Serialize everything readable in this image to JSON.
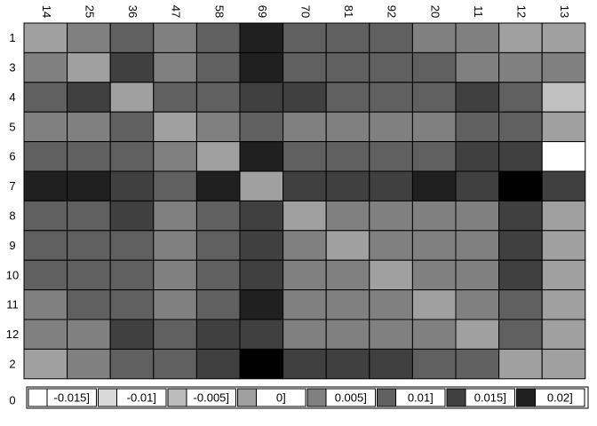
{
  "chart_data": {
    "type": "heatmap",
    "x_labels": [
      "14",
      "25",
      "36",
      "47",
      "58",
      "69",
      "70",
      "81",
      "92",
      "20",
      "11",
      "12",
      "13"
    ],
    "y_labels": [
      "1",
      "3",
      "4",
      "5",
      "6",
      "7",
      "8",
      "9",
      "10",
      "11",
      "12",
      "2"
    ],
    "bottom_row_label": "0",
    "gray_levels": [
      [
        "#a0a0a0",
        "#808080",
        "#606060",
        "#808080",
        "#606060",
        "#202020",
        "#606060",
        "#606060",
        "#606060",
        "#808080",
        "#808080",
        "#a0a0a0",
        "#a0a0a0"
      ],
      [
        "#808080",
        "#a0a0a0",
        "#404040",
        "#808080",
        "#606060",
        "#202020",
        "#606060",
        "#606060",
        "#606060",
        "#606060",
        "#808080",
        "#808080",
        "#808080"
      ],
      [
        "#606060",
        "#404040",
        "#a0a0a0",
        "#606060",
        "#606060",
        "#404040",
        "#404040",
        "#606060",
        "#606060",
        "#606060",
        "#404040",
        "#606060",
        "#c0c0c0"
      ],
      [
        "#808080",
        "#808080",
        "#606060",
        "#a0a0a0",
        "#808080",
        "#606060",
        "#808080",
        "#808080",
        "#808080",
        "#808080",
        "#606060",
        "#606060",
        "#a0a0a0"
      ],
      [
        "#606060",
        "#606060",
        "#606060",
        "#808080",
        "#a0a0a0",
        "#202020",
        "#606060",
        "#606060",
        "#606060",
        "#606060",
        "#404040",
        "#404040",
        "#ffffff"
      ],
      [
        "#202020",
        "#202020",
        "#404040",
        "#606060",
        "#202020",
        "#a0a0a0",
        "#404040",
        "#404040",
        "#404040",
        "#202020",
        "#404040",
        "#000000",
        "#404040"
      ],
      [
        "#606060",
        "#606060",
        "#404040",
        "#808080",
        "#606060",
        "#404040",
        "#a0a0a0",
        "#808080",
        "#808080",
        "#808080",
        "#808080",
        "#404040",
        "#a0a0a0"
      ],
      [
        "#606060",
        "#606060",
        "#606060",
        "#808080",
        "#606060",
        "#404040",
        "#808080",
        "#a0a0a0",
        "#808080",
        "#808080",
        "#808080",
        "#404040",
        "#a0a0a0"
      ],
      [
        "#606060",
        "#606060",
        "#606060",
        "#808080",
        "#606060",
        "#404040",
        "#808080",
        "#808080",
        "#a0a0a0",
        "#808080",
        "#808080",
        "#404040",
        "#a0a0a0"
      ],
      [
        "#808080",
        "#606060",
        "#606060",
        "#808080",
        "#606060",
        "#202020",
        "#808080",
        "#808080",
        "#808080",
        "#a0a0a0",
        "#808080",
        "#606060",
        "#a0a0a0"
      ],
      [
        "#808080",
        "#808080",
        "#404040",
        "#606060",
        "#404040",
        "#404040",
        "#808080",
        "#808080",
        "#808080",
        "#808080",
        "#a0a0a0",
        "#606060",
        "#a0a0a0"
      ],
      [
        "#a0a0a0",
        "#808080",
        "#606060",
        "#606060",
        "#404040",
        "#000000",
        "#404040",
        "#404040",
        "#404040",
        "#606060",
        "#606060",
        "#a0a0a0",
        "#a0a0a0"
      ]
    ],
    "legend": [
      {
        "label": "-0.015]",
        "color": "#ffffff"
      },
      {
        "label": "-0.01]",
        "color": "#d8d8d8"
      },
      {
        "label": "-0.005]",
        "color": "#bcbcbc"
      },
      {
        "label": "0]",
        "color": "#a0a0a0"
      },
      {
        "label": "0.005]",
        "color": "#808080"
      },
      {
        "label": "0.01]",
        "color": "#606060"
      },
      {
        "label": "0.015]",
        "color": "#404040"
      },
      {
        "label": "0.02]",
        "color": "#202020"
      }
    ]
  }
}
